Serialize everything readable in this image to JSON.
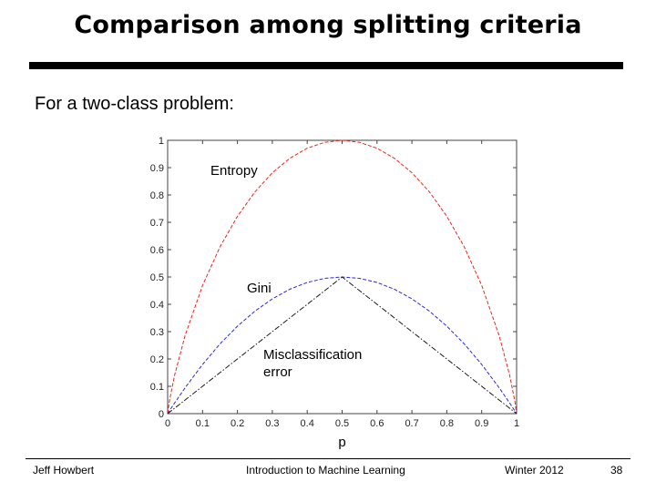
{
  "slide": {
    "title": "Comparison among splitting criteria",
    "subtitle": "For a two-class problem:"
  },
  "footer": {
    "author": "Jeff Howbert",
    "course": "Introduction to Machine Learning",
    "term": "Winter 2012",
    "page": "38"
  },
  "colors": {
    "entropy": "#e8281e",
    "gini": "#2a2ad8",
    "misclassification": "#1a1a1a"
  },
  "chart_data": {
    "type": "line",
    "title": "",
    "xlabel": "p",
    "ylabel": "",
    "xlim": [
      0,
      1
    ],
    "ylim": [
      0,
      1
    ],
    "x_ticks": [
      "0",
      "0.1",
      "0.2",
      "0.3",
      "0.4",
      "0.5",
      "0.6",
      "0.7",
      "0.8",
      "0.9",
      "1"
    ],
    "y_ticks": [
      "0",
      "0.1",
      "0.2",
      "0.3",
      "0.4",
      "0.5",
      "0.6",
      "0.7",
      "0.8",
      "0.9",
      "1"
    ],
    "x": [
      0,
      0.005,
      0.02,
      0.05,
      0.1,
      0.15,
      0.2,
      0.25,
      0.3,
      0.35,
      0.4,
      0.45,
      0.5,
      0.55,
      0.6,
      0.65,
      0.7,
      0.75,
      0.8,
      0.85,
      0.9,
      0.95,
      0.98,
      0.995,
      1
    ],
    "series": [
      {
        "name": "Entropy",
        "label": "Entropy",
        "style": "dashed",
        "values": [
          0,
          0.0454,
          0.1414,
          0.2864,
          0.469,
          0.6098,
          0.7219,
          0.8113,
          0.8813,
          0.9341,
          0.971,
          0.9928,
          1,
          0.9928,
          0.971,
          0.9341,
          0.8813,
          0.8113,
          0.7219,
          0.6098,
          0.469,
          0.2864,
          0.1414,
          0.0454,
          0
        ]
      },
      {
        "name": "Gini",
        "label": "Gini",
        "style": "dashed",
        "values": [
          0,
          0.00995,
          0.0392,
          0.095,
          0.18,
          0.255,
          0.32,
          0.375,
          0.42,
          0.455,
          0.48,
          0.495,
          0.5,
          0.495,
          0.48,
          0.455,
          0.42,
          0.375,
          0.32,
          0.255,
          0.18,
          0.095,
          0.0392,
          0.00995,
          0
        ]
      },
      {
        "name": "Misclassification error",
        "label": "Misclassification",
        "label2": "error",
        "style": "dashdot",
        "values": [
          0,
          0.005,
          0.02,
          0.05,
          0.1,
          0.15,
          0.2,
          0.25,
          0.3,
          0.35,
          0.4,
          0.45,
          0.5,
          0.45,
          0.4,
          0.35,
          0.3,
          0.25,
          0.2,
          0.15,
          0.1,
          0.05,
          0.02,
          0.005,
          0
        ]
      }
    ]
  }
}
